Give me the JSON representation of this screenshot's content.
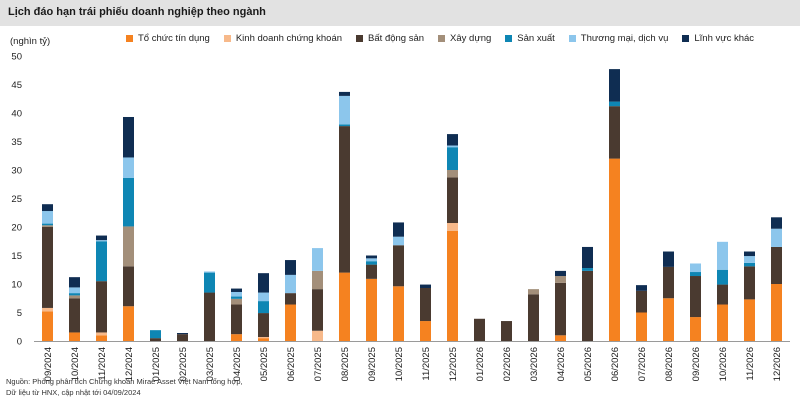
{
  "title": "Lịch đáo hạn trái phiếu doanh nghiệp theo ngành",
  "source_lines": [
    "Nguồn: Phòng phân tích Chứng khoán Mirae Asset Việt Nam tổng hợp,",
    "Dữ liệu từ HNX, cập nhật tới 04/09/2024"
  ],
  "chart_data": {
    "type": "bar",
    "stacked": true,
    "ylabel": "(nghìn tỷ)",
    "ylim": [
      0,
      50
    ],
    "yticks": [
      0,
      5,
      10,
      15,
      20,
      25,
      30,
      35,
      40,
      45,
      50
    ],
    "grid": false,
    "legend_position": "top",
    "categories": [
      "09/2024",
      "10/2024",
      "11/2024",
      "12/2024",
      "01/2025",
      "02/2025",
      "03/2025",
      "04/2025",
      "05/2025",
      "06/2025",
      "07/2025",
      "08/2025",
      "09/2025",
      "10/2025",
      "11/2025",
      "12/2025",
      "01/2026",
      "02/2026",
      "03/2026",
      "04/2026",
      "05/2026",
      "06/2026",
      "07/2026",
      "08/2026",
      "09/2026",
      "10/2026",
      "11/2026",
      "12/2026"
    ],
    "series": [
      {
        "name": "Tổ chức tín dụng",
        "color": "#f58220",
        "values": [
          5.2,
          1.5,
          1.0,
          6.1,
          0,
          0,
          0,
          1.2,
          0.5,
          6.4,
          0,
          12.0,
          10.9,
          9.6,
          3.5,
          19.3,
          0,
          0,
          0,
          1.0,
          0,
          32.0,
          5.0,
          7.5,
          4.2,
          6.4,
          7.3,
          10.0
        ]
      },
      {
        "name": "Kinh doanh chứng khoán",
        "color": "#f7b98a",
        "values": [
          0.6,
          0,
          0.5,
          0,
          0,
          0,
          0,
          0,
          0.2,
          0,
          1.8,
          0,
          0,
          0,
          0,
          1.4,
          0,
          0,
          0,
          0,
          0,
          0,
          0,
          0,
          0,
          0,
          0,
          0
        ]
      },
      {
        "name": "Bất động sản",
        "color": "#4a3a30",
        "values": [
          14.2,
          6.0,
          9.0,
          7.0,
          0.5,
          1.2,
          8.5,
          5.2,
          4.2,
          2.0,
          7.3,
          25.7,
          2.5,
          7.2,
          5.8,
          8.0,
          3.9,
          3.5,
          8.2,
          9.2,
          12.3,
          9.2,
          3.8,
          5.5,
          7.2,
          3.5,
          5.8,
          6.5
        ]
      },
      {
        "name": "Xây dựng",
        "color": "#a38f7a",
        "values": [
          0.3,
          0.5,
          0,
          7.0,
          0,
          0,
          0,
          1.0,
          0,
          0,
          3.2,
          0,
          0,
          0,
          0,
          1.3,
          0,
          0,
          0.9,
          1.2,
          0,
          0,
          0,
          0,
          0,
          0,
          0,
          0
        ]
      },
      {
        "name": "Sản xuất",
        "color": "#0e86b4",
        "values": [
          0.3,
          0.4,
          7.0,
          8.5,
          1.4,
          0,
          3.5,
          0.4,
          2.1,
          0,
          0,
          0.3,
          0.6,
          0,
          0,
          4.0,
          0,
          0,
          0,
          0,
          0.5,
          0.8,
          0,
          0,
          0.7,
          2.6,
          0.6,
          0
        ]
      },
      {
        "name": "Thương mại, dịch vụ",
        "color": "#8cc6ec",
        "values": [
          2.2,
          1.0,
          0.2,
          3.6,
          0,
          0,
          0.2,
          0.8,
          1.5,
          3.2,
          4.0,
          5.0,
          0.5,
          1.5,
          0,
          0.3,
          0,
          0,
          0,
          0,
          0,
          0,
          0,
          0,
          1.5,
          4.9,
          1.2,
          3.2
        ]
      },
      {
        "name": "Lĩnh vực khác",
        "color": "#0f2d52",
        "values": [
          1.2,
          1.8,
          0.8,
          7.1,
          0,
          0.2,
          0,
          0.6,
          3.4,
          2.6,
          0,
          0.7,
          0.5,
          2.5,
          0.6,
          2.0,
          0,
          0,
          0,
          0.9,
          3.7,
          5.7,
          1.0,
          2.7,
          0,
          0,
          0.8,
          2.0
        ]
      }
    ]
  }
}
